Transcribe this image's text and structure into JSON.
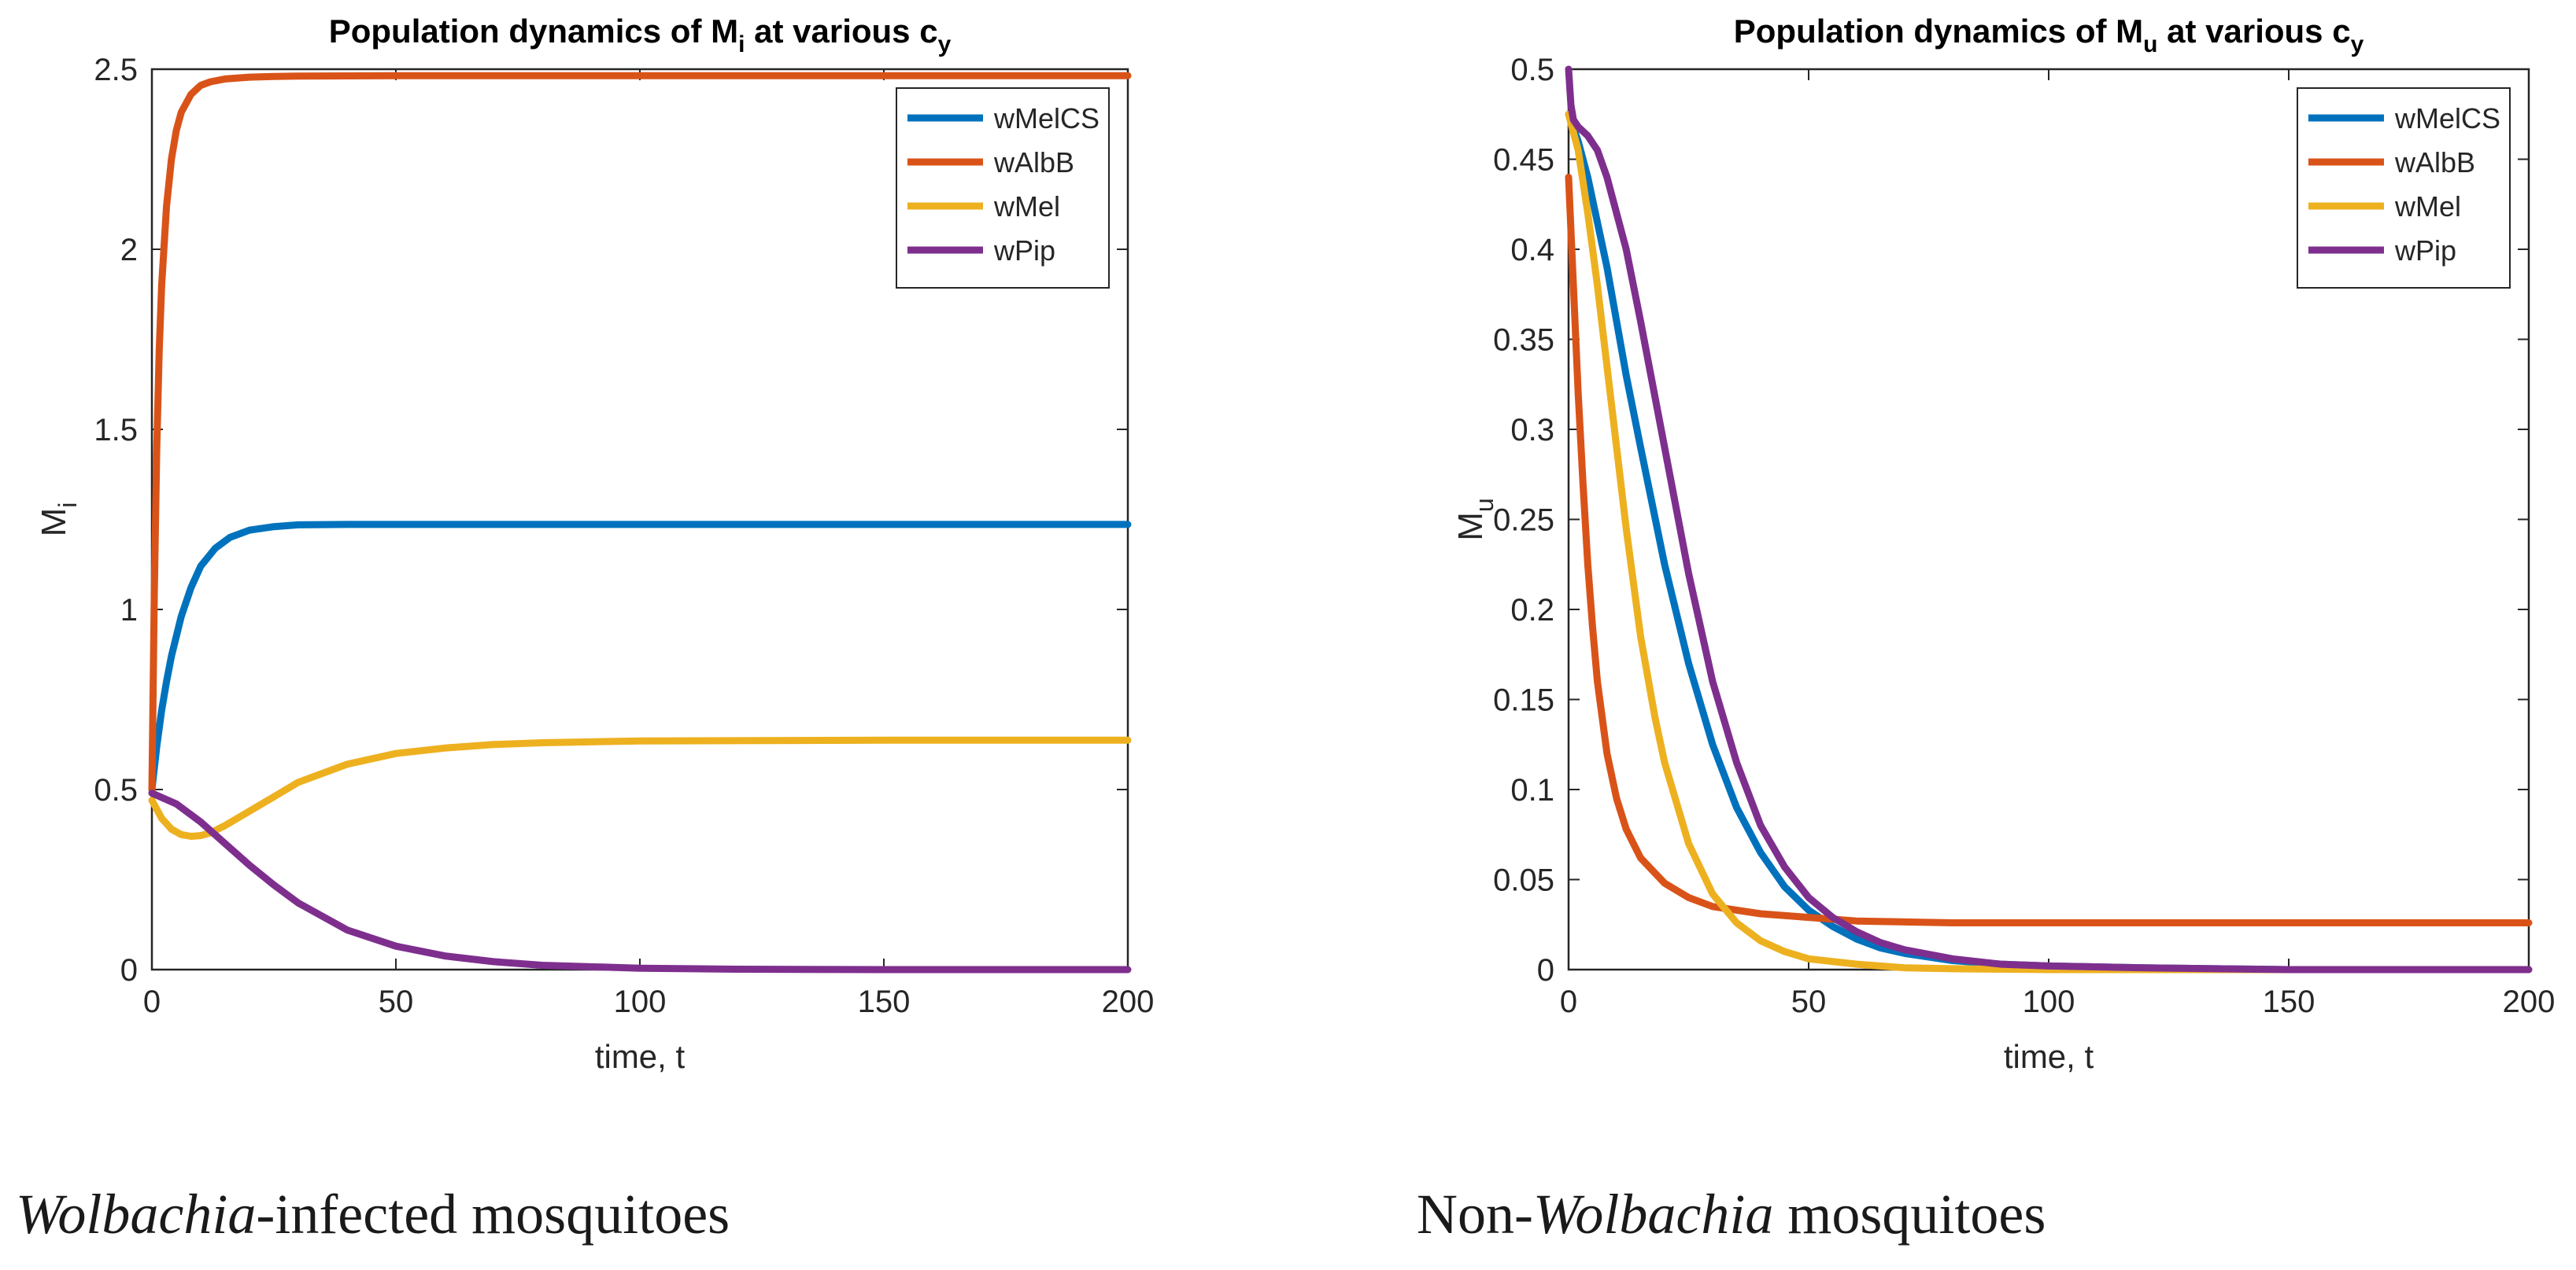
{
  "chart_data": [
    {
      "type": "line",
      "title": "Population dynamics of M",
      "title_sub": "i",
      "title_tail": " at various c",
      "title_sub2": "y",
      "xlabel": "time, t",
      "ylabel": "M",
      "ylabel_sub": "i",
      "xlim": [
        0,
        200
      ],
      "ylim": [
        0,
        2.5
      ],
      "xticks": [
        "0",
        "50",
        "100",
        "150",
        "200"
      ],
      "yticks": [
        "0",
        "0.5",
        "1",
        "1.5",
        "2",
        "2.5"
      ],
      "legend_position": "top-right",
      "grid": false,
      "series": [
        {
          "name": "wMelCS",
          "color": "#0072BD",
          "x": [
            0,
            1,
            2,
            3,
            4,
            6,
            8,
            10,
            13,
            16,
            20,
            25,
            30,
            40,
            50,
            70,
            100,
            150,
            200
          ],
          "y": [
            0.5,
            0.62,
            0.72,
            0.8,
            0.87,
            0.98,
            1.06,
            1.12,
            1.17,
            1.2,
            1.22,
            1.23,
            1.235,
            1.236,
            1.236,
            1.236,
            1.236,
            1.236,
            1.236
          ]
        },
        {
          "name": "wAlbB",
          "color": "#D95319",
          "x": [
            0,
            0.5,
            1,
            1.5,
            2,
            3,
            4,
            5,
            6,
            8,
            10,
            12,
            15,
            20,
            25,
            30,
            50,
            100,
            150,
            200
          ],
          "y": [
            0.5,
            1.05,
            1.45,
            1.72,
            1.9,
            2.12,
            2.25,
            2.33,
            2.38,
            2.43,
            2.455,
            2.465,
            2.473,
            2.478,
            2.48,
            2.481,
            2.482,
            2.482,
            2.482,
            2.482
          ]
        },
        {
          "name": "wMel",
          "color": "#EDB120",
          "x": [
            0,
            2,
            4,
            6,
            8,
            10,
            12,
            15,
            20,
            25,
            30,
            40,
            50,
            60,
            70,
            80,
            100,
            150,
            200
          ],
          "y": [
            0.47,
            0.42,
            0.39,
            0.375,
            0.37,
            0.372,
            0.38,
            0.4,
            0.44,
            0.48,
            0.52,
            0.57,
            0.6,
            0.615,
            0.625,
            0.63,
            0.635,
            0.637,
            0.637
          ]
        },
        {
          "name": "wPip",
          "color": "#7E2F8E",
          "x": [
            0,
            5,
            10,
            15,
            20,
            25,
            30,
            40,
            50,
            60,
            70,
            80,
            100,
            120,
            150,
            200
          ],
          "y": [
            0.49,
            0.46,
            0.41,
            0.35,
            0.29,
            0.235,
            0.185,
            0.11,
            0.065,
            0.038,
            0.022,
            0.012,
            0.004,
            0.001,
            0.0,
            0.0
          ]
        }
      ]
    },
    {
      "type": "line",
      "title": "Population dynamics of M",
      "title_sub": "u",
      "title_tail": " at various c",
      "title_sub2": "y",
      "xlabel": "time, t",
      "ylabel": "M",
      "ylabel_sub": "u",
      "xlim": [
        0,
        200
      ],
      "ylim": [
        0,
        0.5
      ],
      "xticks": [
        "0",
        "50",
        "100",
        "150",
        "200"
      ],
      "yticks": [
        "0",
        "0.05",
        "0.1",
        "0.15",
        "0.2",
        "0.25",
        "0.3",
        "0.35",
        "0.4",
        "0.45",
        "0.5"
      ],
      "legend_position": "top-right",
      "grid": false,
      "series": [
        {
          "name": "wMelCS",
          "color": "#0072BD",
          "x": [
            0,
            2,
            4,
            6,
            8,
            10,
            12,
            15,
            20,
            25,
            30,
            35,
            40,
            45,
            50,
            55,
            60,
            65,
            70,
            80,
            90,
            100,
            120,
            150,
            200
          ],
          "y": [
            0.475,
            0.46,
            0.44,
            0.415,
            0.39,
            0.36,
            0.33,
            0.29,
            0.225,
            0.17,
            0.125,
            0.09,
            0.065,
            0.046,
            0.033,
            0.024,
            0.017,
            0.012,
            0.009,
            0.005,
            0.003,
            0.002,
            0.001,
            0.0,
            0.0
          ]
        },
        {
          "name": "wAlbB",
          "color": "#D95319",
          "x": [
            0,
            1,
            2,
            3,
            4,
            5,
            6,
            8,
            10,
            12,
            15,
            20,
            25,
            30,
            40,
            50,
            60,
            80,
            100,
            150,
            200
          ],
          "y": [
            0.44,
            0.38,
            0.32,
            0.27,
            0.225,
            0.19,
            0.16,
            0.12,
            0.095,
            0.078,
            0.062,
            0.048,
            0.04,
            0.035,
            0.031,
            0.029,
            0.027,
            0.026,
            0.026,
            0.026,
            0.026
          ]
        },
        {
          "name": "wMel",
          "color": "#EDB120",
          "x": [
            0,
            2,
            4,
            6,
            8,
            10,
            12,
            15,
            18,
            20,
            25,
            30,
            35,
            40,
            45,
            50,
            60,
            70,
            80,
            100,
            200
          ],
          "y": [
            0.475,
            0.455,
            0.42,
            0.38,
            0.335,
            0.29,
            0.245,
            0.185,
            0.14,
            0.115,
            0.07,
            0.042,
            0.026,
            0.016,
            0.01,
            0.006,
            0.003,
            0.001,
            0.0005,
            0.0,
            0.0
          ]
        },
        {
          "name": "wPip",
          "color": "#7E2F8E",
          "x": [
            0,
            0.5,
            1,
            2,
            4,
            6,
            8,
            10,
            12,
            15,
            20,
            25,
            30,
            35,
            40,
            45,
            50,
            55,
            60,
            65,
            70,
            80,
            90,
            100,
            120,
            150,
            200
          ],
          "y": [
            0.5,
            0.48,
            0.472,
            0.468,
            0.463,
            0.455,
            0.44,
            0.42,
            0.4,
            0.36,
            0.29,
            0.22,
            0.16,
            0.115,
            0.08,
            0.057,
            0.04,
            0.029,
            0.021,
            0.015,
            0.011,
            0.006,
            0.003,
            0.002,
            0.001,
            0.0,
            0.0
          ]
        }
      ]
    }
  ],
  "captions": {
    "left_italic": "Wolbachia",
    "left_rest": "-infected mosquitoes",
    "right_prefix": "Non-",
    "right_italic": "Wolbachia",
    "right_rest": " mosquitoes"
  }
}
